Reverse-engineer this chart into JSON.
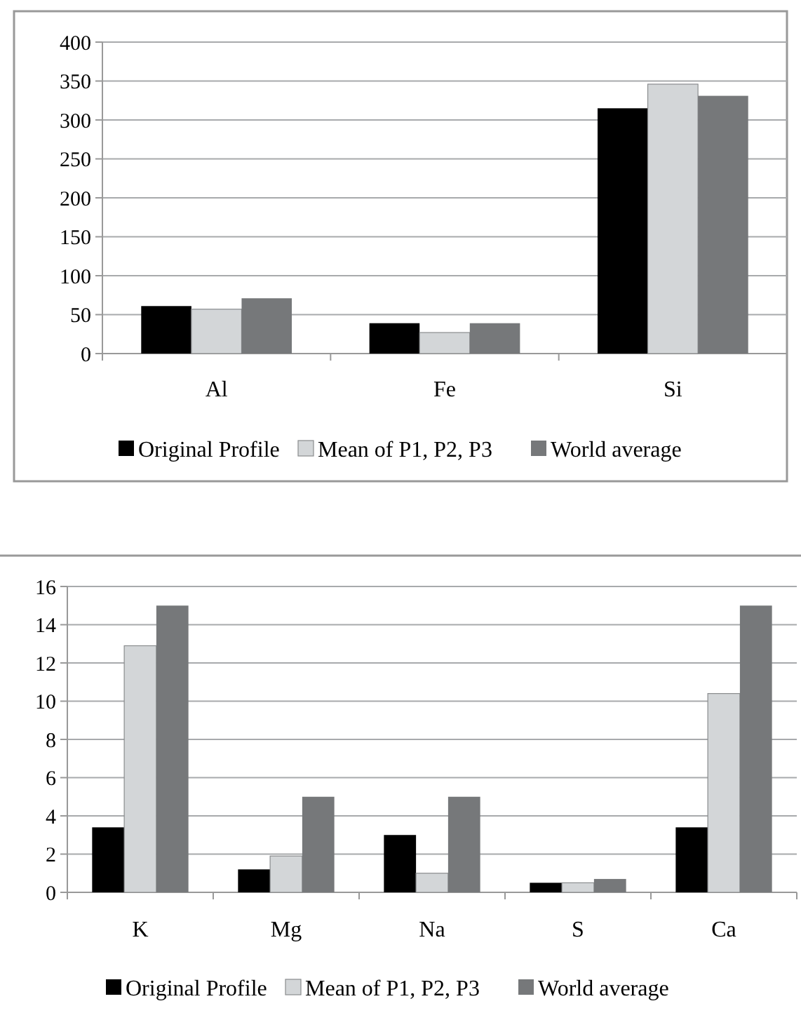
{
  "chart_data": [
    {
      "type": "bar",
      "categories": [
        "Al",
        "Fe",
        "Si"
      ],
      "series": [
        {
          "name": "Original Profile",
          "color": "#000000",
          "values": [
            61,
            39,
            315
          ]
        },
        {
          "name": "Mean of P1, P2, P3",
          "color": "#d3d6d8",
          "values": [
            57,
            27,
            346
          ]
        },
        {
          "name": "World average",
          "color": "#76787a",
          "values": [
            71,
            39,
            331
          ]
        }
      ],
      "ylim": [
        0,
        400
      ],
      "yticks": [
        0,
        50,
        100,
        150,
        200,
        250,
        300,
        350,
        400
      ],
      "grid": "y",
      "legend": "bottom"
    },
    {
      "type": "bar",
      "categories": [
        "K",
        "Mg",
        "Na",
        "S",
        "Ca"
      ],
      "series": [
        {
          "name": "Original Profile",
          "color": "#000000",
          "values": [
            3.4,
            1.2,
            3,
            0.5,
            3.4
          ]
        },
        {
          "name": "Mean of P1, P2, P3",
          "color": "#d3d6d8",
          "values": [
            12.9,
            1.9,
            1,
            0.5,
            10.4
          ]
        },
        {
          "name": "World average",
          "color": "#76787a",
          "values": [
            15,
            5,
            5,
            0.7,
            15
          ]
        }
      ],
      "ylim": [
        0,
        16
      ],
      "yticks": [
        0,
        2,
        4,
        6,
        8,
        10,
        12,
        14,
        16
      ],
      "grid": "y",
      "legend": "bottom"
    }
  ]
}
